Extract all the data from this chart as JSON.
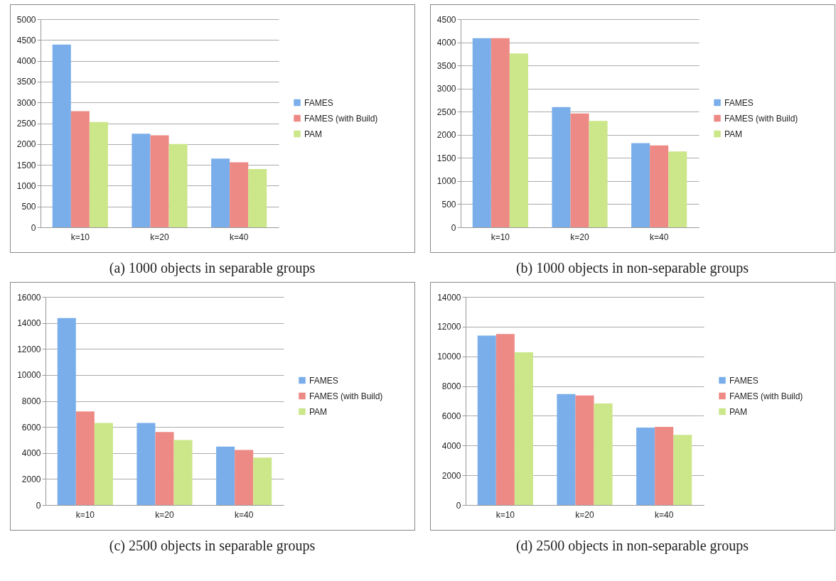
{
  "chart_data": [
    {
      "type": "bar",
      "title": "(a) 1000 objects in separable groups",
      "categories": [
        "k=10",
        "k=20",
        "k=40"
      ],
      "ylim": [
        0,
        5000
      ],
      "yticks": [
        0,
        500,
        1000,
        1500,
        2000,
        2500,
        3000,
        3500,
        4000,
        4500,
        5000
      ],
      "grid": "y",
      "legend": "right",
      "series": [
        {
          "name": "FAMES",
          "color": "#7aaeea",
          "values": [
            4390,
            2250,
            1650
          ]
        },
        {
          "name": "FAMES (with Build)",
          "color": "#ee8a85",
          "values": [
            2790,
            2210,
            1560
          ]
        },
        {
          "name": "PAM",
          "color": "#cce68a",
          "values": [
            2530,
            2000,
            1400
          ]
        }
      ]
    },
    {
      "type": "bar",
      "title": "(b) 1000 objects in non-separable groups",
      "categories": [
        "k=10",
        "k=20",
        "k=40"
      ],
      "ylim": [
        0,
        4500
      ],
      "yticks": [
        0,
        500,
        1000,
        1500,
        2000,
        2500,
        3000,
        3500,
        4000,
        4500
      ],
      "grid": "y",
      "legend": "right",
      "series": [
        {
          "name": "FAMES",
          "color": "#7aaeea",
          "values": [
            4090,
            2600,
            1820
          ]
        },
        {
          "name": "FAMES (with Build)",
          "color": "#ee8a85",
          "values": [
            4090,
            2460,
            1770
          ]
        },
        {
          "name": "PAM",
          "color": "#cce68a",
          "values": [
            3760,
            2300,
            1640
          ]
        }
      ]
    },
    {
      "type": "bar",
      "title": "(c) 2500 objects in separable groups",
      "categories": [
        "k=10",
        "k=20",
        "k=40"
      ],
      "ylim": [
        0,
        16000
      ],
      "yticks": [
        0,
        2000,
        4000,
        6000,
        8000,
        10000,
        12000,
        14000,
        16000
      ],
      "grid": "y",
      "legend": "right",
      "series": [
        {
          "name": "FAMES",
          "color": "#7aaeea",
          "values": [
            14370,
            6310,
            4490
          ]
        },
        {
          "name": "FAMES (with Build)",
          "color": "#ee8a85",
          "values": [
            7190,
            5610,
            4230
          ]
        },
        {
          "name": "PAM",
          "color": "#cce68a",
          "values": [
            6310,
            5000,
            3650
          ]
        }
      ]
    },
    {
      "type": "bar",
      "title": "(d) 2500 objects in non-separable groups",
      "categories": [
        "k=10",
        "k=20",
        "k=40"
      ],
      "ylim": [
        0,
        14000
      ],
      "yticks": [
        0,
        2000,
        4000,
        6000,
        8000,
        10000,
        12000,
        14000
      ],
      "grid": "y",
      "legend": "right",
      "series": [
        {
          "name": "FAMES",
          "color": "#7aaeea",
          "values": [
            11400,
            7470,
            5210
          ]
        },
        {
          "name": "FAMES (with Build)",
          "color": "#ee8a85",
          "values": [
            11500,
            7370,
            5260
          ]
        },
        {
          "name": "PAM",
          "color": "#cce68a",
          "values": [
            10270,
            6830,
            4720
          ]
        }
      ]
    }
  ]
}
